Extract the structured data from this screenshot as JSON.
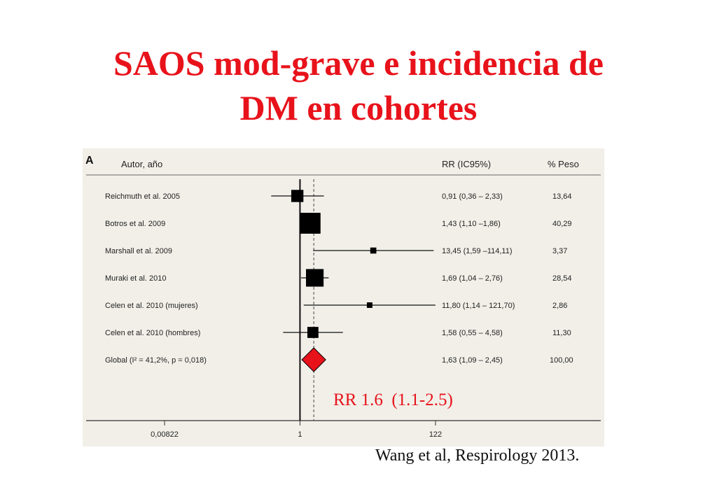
{
  "title_line1": "SAOS mod-grave e incidencia de",
  "title_line2": "DM en cohortes",
  "summary_label": "RR 1.6  (1.1-2.5)",
  "citation": "Wang et al, Respirology 2013.",
  "colors": {
    "title": "#e8121b",
    "summary_diamond": "#e8121b",
    "panel_bg": "#f1efe8"
  },
  "chart_data": {
    "type": "forest",
    "panel_label": "A",
    "headers": {
      "study": "Autor, año",
      "estimate": "RR (IC95%)",
      "weight": "% Peso"
    },
    "xscale": "log",
    "xlim": [
      0.00822,
      122
    ],
    "xticks": [
      "0,00822",
      "1",
      "122"
    ],
    "xtick_values": [
      0.00822,
      1,
      122
    ],
    "reference_line": 1,
    "pooled_line": 1.63,
    "studies": [
      {
        "label": "Reichmuth et al. 2005",
        "rr": 0.91,
        "lo": 0.36,
        "hi": 2.33,
        "ci_text": "0,91 (0,36 – 2,33)",
        "weight": 13.64,
        "weight_text": "13,64"
      },
      {
        "label": "Botros et al. 2009",
        "rr": 1.43,
        "lo": 1.1,
        "hi": 1.86,
        "ci_text": "1,43 (1,10 –1,86)",
        "weight": 40.29,
        "weight_text": "40,29"
      },
      {
        "label": "Marshall et al. 2009",
        "rr": 13.45,
        "lo": 1.59,
        "hi": 114.11,
        "ci_text": "13,45 (1,59 –114,11)",
        "weight": 3.37,
        "weight_text": "3,37"
      },
      {
        "label": "Muraki et al. 2010",
        "rr": 1.69,
        "lo": 1.04,
        "hi": 2.76,
        "ci_text": "1,69 (1,04 – 2,76)",
        "weight": 28.54,
        "weight_text": "28,54"
      },
      {
        "label": "Celen et al. 2010 (mujeres)",
        "rr": 11.8,
        "lo": 1.14,
        "hi": 121.7,
        "ci_text": "11,80 (1,14 – 121,70)",
        "weight": 2.86,
        "weight_text": "2,86"
      },
      {
        "label": "Celen et al. 2010 (hombres)",
        "rr": 1.58,
        "lo": 0.55,
        "hi": 4.58,
        "ci_text": "1,58 (0,55 – 4,58)",
        "weight": 11.3,
        "weight_text": "11,30"
      }
    ],
    "overall": {
      "label": "Global (I² = 41,2%, p = 0,018)",
      "rr": 1.63,
      "lo": 1.09,
      "hi": 2.45,
      "ci_text": "1,63 (1,09 – 2,45)",
      "weight": 100,
      "weight_text": "100,00"
    }
  }
}
